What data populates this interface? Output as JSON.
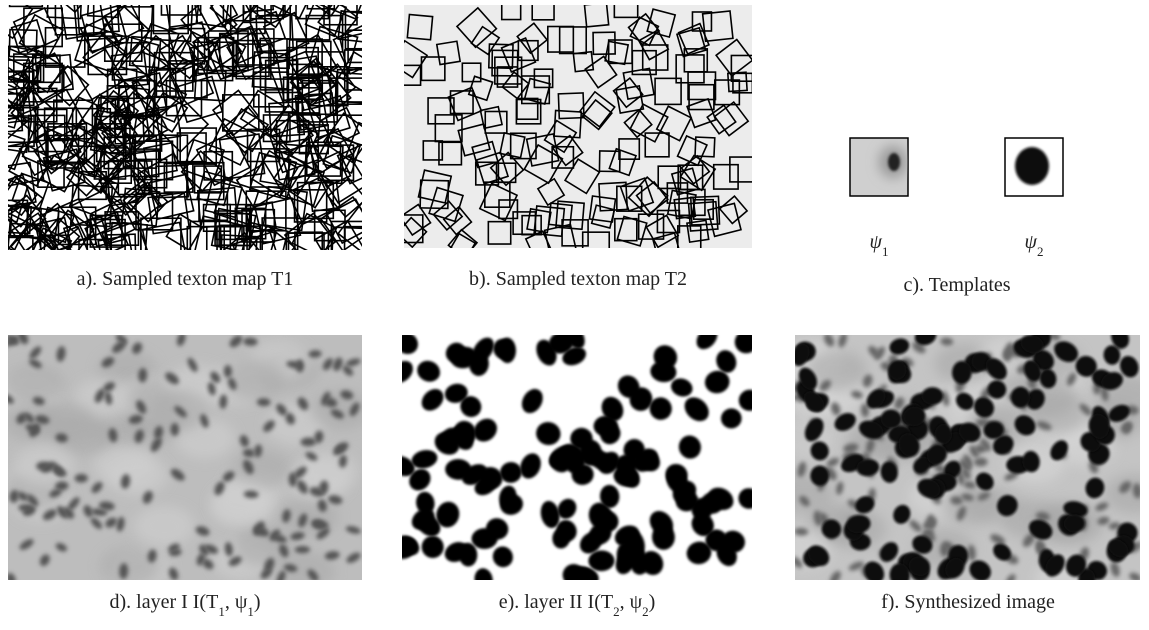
{
  "panels": [
    {
      "caption": [
        "a). Sampled texton map T1"
      ]
    },
    {
      "caption": [
        "b). Sampled texton map T2"
      ]
    },
    {
      "caption": [
        "c). Templates"
      ],
      "templates": [
        [
          "ψ",
          "1"
        ],
        [
          "ψ",
          "2"
        ]
      ]
    },
    {
      "caption": [
        "d). layer I   I(T",
        "1",
        ", ψ",
        "1",
        ")"
      ]
    },
    {
      "caption": [
        "e). layer II   I(T",
        "2",
        ", ψ",
        "2",
        ")"
      ]
    },
    {
      "caption": [
        "f). Synthesized image"
      ]
    }
  ]
}
